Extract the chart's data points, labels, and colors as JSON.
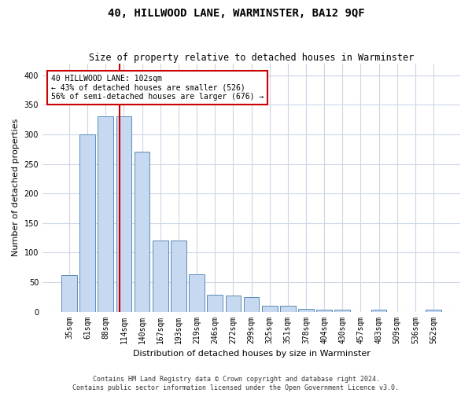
{
  "title": "40, HILLWOOD LANE, WARMINSTER, BA12 9QF",
  "subtitle": "Size of property relative to detached houses in Warminster",
  "xlabel": "Distribution of detached houses by size in Warminster",
  "ylabel": "Number of detached properties",
  "categories": [
    "35sqm",
    "61sqm",
    "88sqm",
    "114sqm",
    "140sqm",
    "167sqm",
    "193sqm",
    "219sqm",
    "246sqm",
    "272sqm",
    "299sqm",
    "325sqm",
    "351sqm",
    "378sqm",
    "404sqm",
    "430sqm",
    "457sqm",
    "483sqm",
    "509sqm",
    "536sqm",
    "562sqm"
  ],
  "values": [
    62,
    300,
    330,
    330,
    270,
    120,
    120,
    63,
    28,
    27,
    25,
    10,
    10,
    5,
    3,
    3,
    0,
    3,
    0,
    0,
    3
  ],
  "bar_color": "#c6d9f0",
  "bar_edge_color": "#5b8db8",
  "red_line_x": 2.75,
  "annotation_line1": "40 HILLWOOD LANE: 102sqm",
  "annotation_line2": "← 43% of detached houses are smaller (526)",
  "annotation_line3": "56% of semi-detached houses are larger (676) →",
  "annotation_box_color": "#ffffff",
  "annotation_box_edge": "#cc0000",
  "red_line_color": "#cc0000",
  "ylim": [
    0,
    420
  ],
  "yticks": [
    0,
    50,
    100,
    150,
    200,
    250,
    300,
    350,
    400
  ],
  "background_color": "#ffffff",
  "grid_color": "#ccd6e8",
  "footer_line1": "Contains HM Land Registry data © Crown copyright and database right 2024.",
  "footer_line2": "Contains public sector information licensed under the Open Government Licence v3.0.",
  "title_fontsize": 10,
  "subtitle_fontsize": 8.5,
  "xlabel_fontsize": 8,
  "ylabel_fontsize": 8,
  "tick_fontsize": 7,
  "annot_fontsize": 7,
  "footer_fontsize": 6,
  "bar_width": 0.85
}
